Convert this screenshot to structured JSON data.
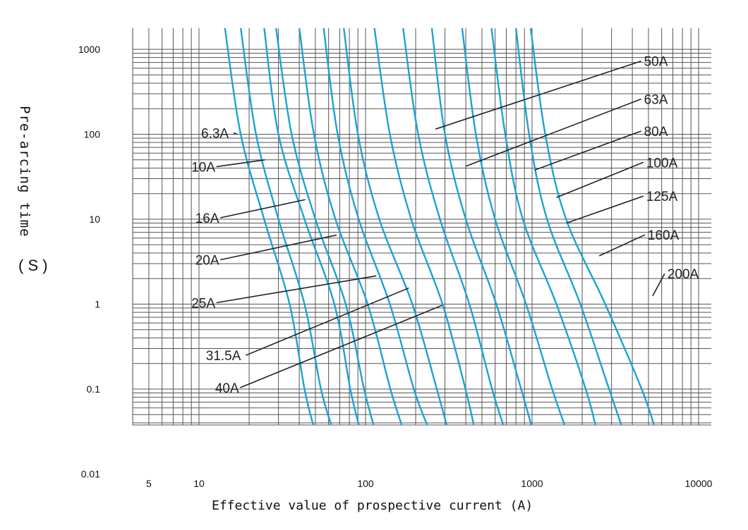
{
  "chart_data": {
    "type": "line",
    "title": "",
    "xlabel": "Effective value of prospective current (A)",
    "ylabel": "Pre-arcing time",
    "yunit": "( S )",
    "xscale": "log",
    "yscale": "log",
    "xlim": [
      3.6,
      12500
    ],
    "ylim": [
      0.01,
      1800
    ],
    "x_ticks": [
      5,
      10,
      100,
      1000,
      10000
    ],
    "x_tick_labels": [
      "5",
      "10",
      "100",
      "1000",
      "10000"
    ],
    "y_ticks": [
      0.01,
      0.1,
      1,
      10,
      100,
      1000
    ],
    "y_tick_labels": [
      "0.01",
      "0.1",
      "1",
      "10",
      "100",
      "1000"
    ],
    "grid": true,
    "curve_color": "#1aa3d6",
    "series": [
      {
        "name": "6.3A",
        "points": [
          [
            14.3,
            1800
          ],
          [
            17.8,
            100
          ],
          [
            24.6,
            10
          ],
          [
            35,
            1
          ],
          [
            43,
            0.1
          ],
          [
            49,
            0.035
          ]
        ]
      },
      {
        "name": "10A",
        "points": [
          [
            17.8,
            1800
          ],
          [
            22,
            100
          ],
          [
            30,
            10
          ],
          [
            43,
            1
          ],
          [
            54,
            0.1
          ],
          [
            63,
            0.035
          ]
        ]
      },
      {
        "name": "16A",
        "points": [
          [
            24.6,
            1800
          ],
          [
            30,
            100
          ],
          [
            43,
            10
          ],
          [
            65,
            1
          ],
          [
            81,
            0.1
          ],
          [
            92,
            0.035
          ]
        ]
      },
      {
        "name": "20A",
        "points": [
          [
            29,
            1800
          ],
          [
            36,
            100
          ],
          [
            50,
            10
          ],
          [
            76,
            1
          ],
          [
            98,
            0.1
          ],
          [
            113,
            0.035
          ]
        ]
      },
      {
        "name": "25A",
        "points": [
          [
            40,
            1800
          ],
          [
            49,
            100
          ],
          [
            66,
            10
          ],
          [
            103,
            1
          ],
          [
            141,
            0.1
          ],
          [
            167,
            0.035
          ]
        ]
      },
      {
        "name": "31.5A",
        "points": [
          [
            56,
            1800
          ],
          [
            68,
            100
          ],
          [
            91,
            10
          ],
          [
            140,
            1
          ],
          [
            195,
            0.1
          ],
          [
            238,
            0.035
          ]
        ]
      },
      {
        "name": "40A",
        "points": [
          [
            74,
            1800
          ],
          [
            90,
            100
          ],
          [
            121,
            10
          ],
          [
            191,
            1
          ],
          [
            268,
            0.1
          ],
          [
            310,
            0.035
          ]
        ]
      },
      {
        "name": "50A",
        "points": [
          [
            113,
            1800
          ],
          [
            140,
            100
          ],
          [
            188,
            10
          ],
          [
            290,
            1
          ],
          [
            398,
            0.1
          ],
          [
            450,
            0.035
          ]
        ]
      },
      {
        "name": "63A",
        "points": [
          [
            168,
            1800
          ],
          [
            207,
            100
          ],
          [
            280,
            10
          ],
          [
            420,
            1
          ],
          [
            575,
            0.1
          ],
          [
            680,
            0.035
          ]
        ]
      },
      {
        "name": "80A",
        "points": [
          [
            250,
            1800
          ],
          [
            300,
            100
          ],
          [
            400,
            10
          ],
          [
            610,
            1
          ],
          [
            860,
            0.1
          ],
          [
            1000,
            0.035
          ]
        ]
      },
      {
        "name": "100A",
        "points": [
          [
            380,
            1800
          ],
          [
            460,
            100
          ],
          [
            600,
            10
          ],
          [
            920,
            1
          ],
          [
            1320,
            0.1
          ],
          [
            1590,
            0.035
          ]
        ]
      },
      {
        "name": "125A",
        "points": [
          [
            570,
            1800
          ],
          [
            690,
            100
          ],
          [
            880,
            10
          ],
          [
            1400,
            1
          ],
          [
            2100,
            0.1
          ],
          [
            2420,
            0.035
          ]
        ]
      },
      {
        "name": "160A",
        "points": [
          [
            800,
            1800
          ],
          [
            960,
            100
          ],
          [
            1230,
            10
          ],
          [
            1950,
            1
          ],
          [
            2900,
            0.1
          ],
          [
            3480,
            0.035
          ]
        ]
      },
      {
        "name": "200A",
        "points": [
          [
            980,
            1800
          ],
          [
            1200,
            100
          ],
          [
            1600,
            10
          ],
          [
            2750,
            1
          ],
          [
            4550,
            0.1
          ],
          [
            5460,
            0.035
          ]
        ]
      }
    ],
    "annotations": [
      {
        "text": "6.3A",
        "label_at": [
          10.3,
          100
        ],
        "points_to": [
          16.9,
          100
        ]
      },
      {
        "text": "10A",
        "label_at": [
          9.0,
          40
        ],
        "points_to": [
          24.9,
          50
        ]
      },
      {
        "text": "16A",
        "label_at": [
          9.5,
          10
        ],
        "points_to": [
          43.5,
          17
        ]
      },
      {
        "text": "20A",
        "label_at": [
          9.5,
          3.2
        ],
        "points_to": [
          67,
          6.5
        ]
      },
      {
        "text": "25A",
        "label_at": [
          9.0,
          1.0
        ],
        "points_to": [
          116,
          2.15
        ]
      },
      {
        "text": "31.5A",
        "label_at": [
          11,
          0.24
        ],
        "points_to": [
          182,
          1.55
        ]
      },
      {
        "text": "40A",
        "label_at": [
          12.5,
          0.1
        ],
        "points_to": [
          289,
          0.97
        ]
      },
      {
        "text": "50A",
        "label_at": [
          4700,
          700
        ],
        "points_to": [
          263,
          115
        ]
      },
      {
        "text": "63A",
        "label_at": [
          4700,
          250
        ],
        "points_to": [
          400,
          42
        ]
      },
      {
        "text": "80A",
        "label_at": [
          4700,
          105
        ],
        "points_to": [
          1040,
          38
        ]
      },
      {
        "text": "100A",
        "label_at": [
          4850,
          45
        ],
        "points_to": [
          1400,
          18
        ]
      },
      {
        "text": "125A",
        "label_at": [
          4850,
          18
        ],
        "points_to": [
          1610,
          9
        ]
      },
      {
        "text": "160A",
        "label_at": [
          4950,
          6.3
        ],
        "points_to": [
          2530,
          3.7
        ]
      },
      {
        "text": "200A",
        "label_at": [
          6500,
          2.2
        ],
        "points_to": [
          5300,
          1.25
        ]
      }
    ]
  }
}
